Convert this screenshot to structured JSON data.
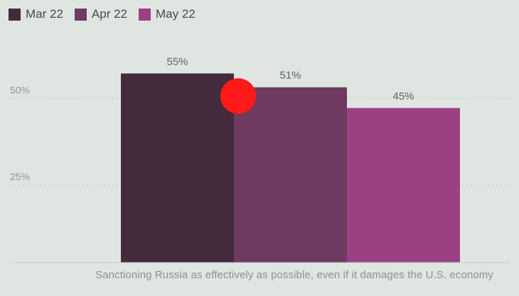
{
  "chart_data": {
    "type": "bar",
    "categories": [
      "Sanctioning Russia as effectively as possible, even if it damages the U.S. economy"
    ],
    "series": [
      {
        "name": "Mar 22",
        "values": [
          55
        ],
        "color": "#432a3c",
        "label": "55%"
      },
      {
        "name": "Apr 22",
        "values": [
          51
        ],
        "color": "#6e3a60",
        "label": "51%"
      },
      {
        "name": "May 22",
        "values": [
          45
        ],
        "color": "#9b4183",
        "label": "45%"
      }
    ],
    "yticks": [
      {
        "value": 25,
        "label": "25%"
      },
      {
        "value": 50,
        "label": "50%"
      }
    ],
    "ylim": [
      0,
      60
    ],
    "grid": true,
    "legend_position": "top-left",
    "title": "",
    "xlabel": "",
    "ylabel": ""
  },
  "overlay": {
    "cursor_color": "#ff1a1a"
  }
}
